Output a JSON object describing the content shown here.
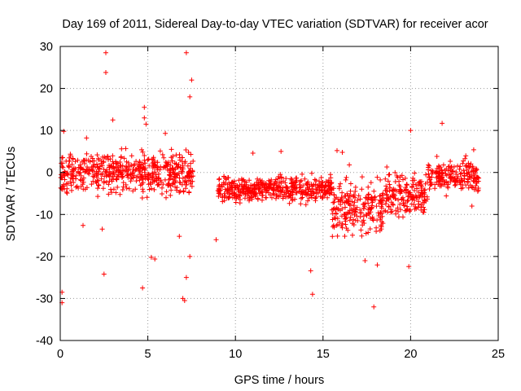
{
  "chart_data": {
    "type": "scatter",
    "title": "Day 169 of 2011, Sidereal Day-to-day VTEC variation (SDTVAR) for receiver acor",
    "xlabel": "GPS time / hours",
    "ylabel": "SDTVAR / TECUs",
    "xlim": [
      0,
      25
    ],
    "ylim": [
      -40,
      30
    ],
    "xticks": [
      0,
      5,
      10,
      15,
      20,
      25
    ],
    "yticks": [
      -40,
      -30,
      -20,
      -10,
      0,
      10,
      20,
      30
    ],
    "grid": true,
    "marker": "+",
    "color": "#ff0000",
    "series": [
      {
        "name": "SDTVAR",
        "bands": [
          {
            "x0": 0.0,
            "x1": 7.6,
            "ymin": -5,
            "ymax": 5
          },
          {
            "x0": 9.0,
            "x1": 15.5,
            "ymin": -7,
            "ymax": -1
          },
          {
            "x0": 15.5,
            "x1": 18.5,
            "ymin": -15,
            "ymax": -2
          },
          {
            "x0": 18.5,
            "x1": 21.0,
            "ymin": -10,
            "ymax": 0
          },
          {
            "x0": 21.0,
            "x1": 23.9,
            "ymin": -5,
            "ymax": 3
          }
        ],
        "outliers": [
          [
            2.6,
            28.5
          ],
          [
            2.6,
            23.8
          ],
          [
            7.2,
            28.5
          ],
          [
            7.5,
            22
          ],
          [
            7.4,
            18
          ],
          [
            4.8,
            15.5
          ],
          [
            4.8,
            13
          ],
          [
            4.9,
            11.5
          ],
          [
            0.1,
            -28.5
          ],
          [
            0.1,
            -31
          ],
          [
            4.7,
            -27.5
          ],
          [
            2.5,
            -24.2
          ],
          [
            5.2,
            -20.2
          ],
          [
            5.4,
            -20.6
          ],
          [
            7.0,
            -30
          ],
          [
            7.1,
            -30.5
          ],
          [
            7.2,
            -25
          ],
          [
            7.4,
            -20
          ],
          [
            8.9,
            -16
          ],
          [
            14.3,
            -23.4
          ],
          [
            14.4,
            -29
          ],
          [
            17.9,
            -32
          ],
          [
            19.9,
            -22.4
          ],
          [
            21.8,
            11.7
          ],
          [
            0.2,
            9.8
          ],
          [
            1.5,
            8.2
          ],
          [
            3.0,
            12.5
          ],
          [
            2.4,
            -13.5
          ],
          [
            1.3,
            -12.6
          ],
          [
            6.8,
            -15.2
          ],
          [
            6.0,
            9.3
          ],
          [
            11.0,
            4.6
          ],
          [
            12.6,
            5.0
          ],
          [
            15.8,
            5.2
          ],
          [
            16.1,
            4.8
          ],
          [
            20.0,
            10.0
          ],
          [
            18.1,
            -22
          ],
          [
            17.4,
            -21
          ],
          [
            16.5,
            1.8
          ],
          [
            23.6,
            5.4
          ],
          [
            23.5,
            -8.0
          ],
          [
            3.5,
            5.6
          ]
        ]
      }
    ]
  }
}
